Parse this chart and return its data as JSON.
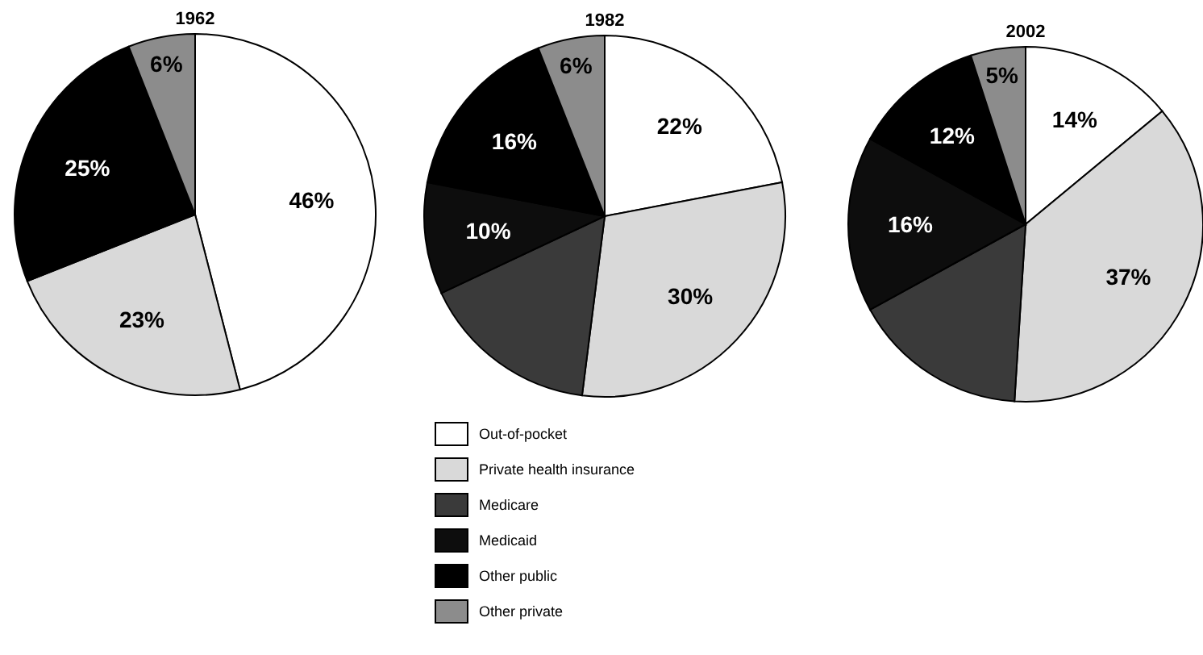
{
  "chart_data": [
    {
      "type": "pie",
      "title": "1962",
      "categories": [
        null,
        null,
        null,
        null
      ],
      "values": [
        46,
        23,
        25,
        6
      ],
      "colors": [
        "#ffffff",
        "#d9d9d9",
        "#000000",
        "#8c8c8c"
      ],
      "value_labels": [
        "46%",
        "23%",
        "25%",
        "6%"
      ],
      "legend": false
    },
    {
      "type": "pie",
      "title": "1982",
      "categories": [
        "Out-of-pocket",
        "Private health insurance",
        "Medicare",
        "Medicaid",
        "Other public",
        "Other private"
      ],
      "values": [
        22,
        30,
        16,
        10,
        16,
        6
      ],
      "colors": [
        "#ffffff",
        "#d9d9d9",
        "#3a3a3a",
        "#0d0d0d",
        "#000000",
        "#8c8c8c"
      ],
      "value_labels": [
        "22%",
        "30%",
        null,
        "10%",
        "16%",
        "6%"
      ],
      "legend": "bottom"
    },
    {
      "type": "pie",
      "title": "2002",
      "categories": [
        null,
        null,
        null,
        null,
        null,
        null
      ],
      "values": [
        14,
        37,
        16,
        16,
        12,
        5
      ],
      "colors": [
        "#ffffff",
        "#d9d9d9",
        "#3a3a3a",
        "#0d0d0d",
        "#000000",
        "#8c8c8c"
      ],
      "value_labels": [
        "14%",
        "37%",
        null,
        "16%",
        "12%",
        "5%"
      ],
      "legend": false
    }
  ]
}
